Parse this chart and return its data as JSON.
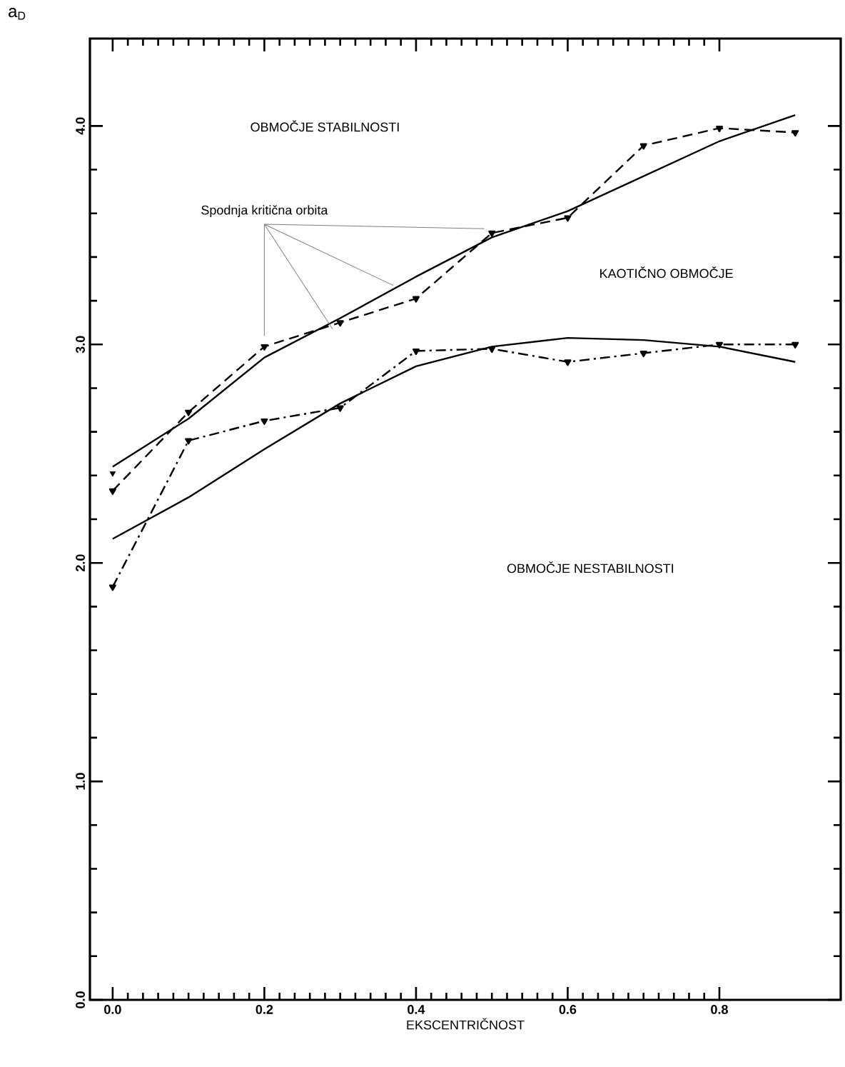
{
  "chart_data": {
    "type": "line",
    "xlabel": "EKSCENTRIČNOST",
    "ylabel": "a$_{D}$",
    "x": [
      0.0,
      0.1,
      0.2,
      0.3,
      0.4,
      0.5,
      0.6,
      0.7,
      0.8,
      0.9
    ],
    "series": [
      {
        "color": "#000000",
        "line_style": "dashed",
        "marker": "triangle",
        "values": [
          2.33,
          2.69,
          2.99,
          3.1,
          3.21,
          3.51,
          3.58,
          3.91,
          3.99,
          3.97
        ]
      },
      {
        "color": "#000000",
        "line_style": "dashdot",
        "marker": "triangle",
        "values": [
          1.89,
          2.56,
          2.65,
          2.71,
          2.97,
          2.98,
          2.92,
          2.96,
          3.0,
          3.0
        ]
      },
      {
        "color": "#000000",
        "line_style": "solid",
        "marker": "none",
        "values": [
          2.44,
          2.66,
          2.94,
          3.12,
          3.31,
          3.49,
          3.61,
          3.77,
          3.93,
          4.05
        ]
      },
      {
        "color": "#000000",
        "line_style": "solid",
        "marker": "none",
        "values": [
          2.11,
          2.3,
          2.52,
          2.73,
          2.9,
          2.99,
          3.03,
          3.02,
          2.99,
          2.92
        ]
      },
      {
        "type": "scatter",
        "color": "#000000",
        "marker": "triangle",
        "x": [
          0.0
        ],
        "values": [
          2.41
        ]
      }
    ],
    "xlim": [
      -0.03,
      0.96
    ],
    "ylim": [
      0,
      4.4
    ],
    "xticks": [
      {
        "value": 0.0,
        "label": "0.0"
      },
      {
        "value": 0.2,
        "label": "0.2"
      },
      {
        "value": 0.4,
        "label": "0.4"
      },
      {
        "value": 0.6,
        "label": "0.6"
      },
      {
        "value": 0.8,
        "label": "0.8"
      }
    ],
    "yticks": [
      {
        "value": 0,
        "label": "0.0"
      },
      {
        "value": 1,
        "label": "1.0"
      },
      {
        "value": 2,
        "label": "2.0"
      },
      {
        "value": 3,
        "label": "3.0"
      },
      {
        "value": 4,
        "label": "4.0"
      }
    ],
    "grid": false,
    "annotations": [
      "OBMOČJE STABILNOSTI",
      {
        "text": "Spodnja kritična orbita",
        "x": 0.2,
        "y": 2.99
      },
      "KAOTIČNO OBMOČJE",
      "OBMOČJE NESTABILNOSTI"
    ]
  }
}
